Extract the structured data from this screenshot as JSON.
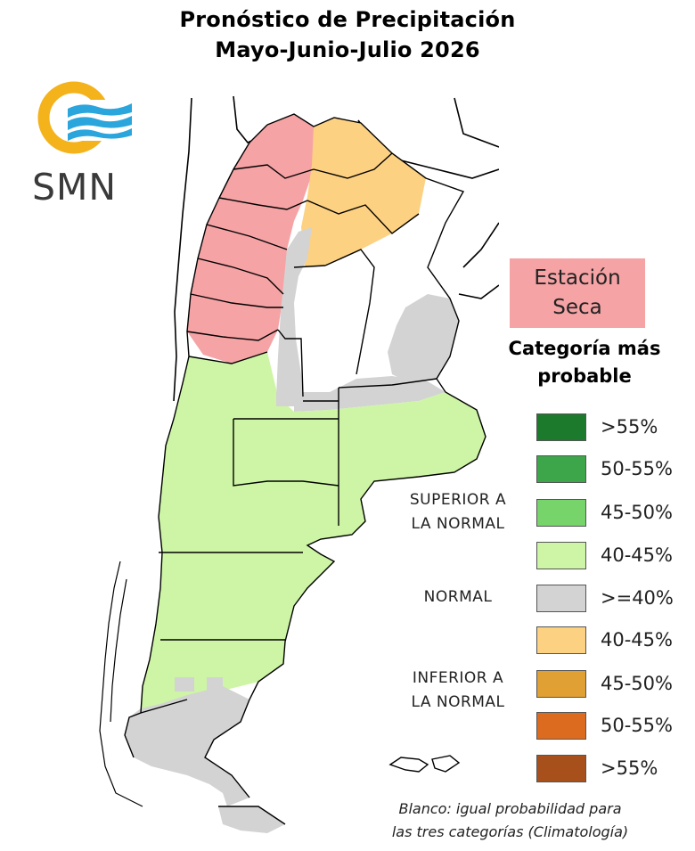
{
  "title_line1": "Pronóstico de Precipitación",
  "title_line2": "Mayo-Junio-Julio 2026",
  "logo": {
    "text": "SMN",
    "icon": "smn-sun-waves-logo",
    "colors": {
      "sun": "#f4b21b",
      "waves": "#2aa6dd",
      "text": "#3a3a3a"
    }
  },
  "dry_season": {
    "line1": "Estación",
    "line2": "Seca",
    "color": "#f5a3a5"
  },
  "legend": {
    "title_line1": "Categoría más",
    "title_line2": "probable",
    "groups": [
      {
        "label_line1": "SUPERIOR A",
        "label_line2": "LA NORMAL"
      },
      {
        "label_line1": "NORMAL",
        "label_line2": ""
      },
      {
        "label_line1": "INFERIOR A",
        "label_line2": "LA NORMAL"
      }
    ],
    "items": [
      {
        "label": ">55%",
        "color": "#1c7a2c"
      },
      {
        "label": "50-55%",
        "color": "#3da64a"
      },
      {
        "label": "45-50%",
        "color": "#77d46a"
      },
      {
        "label": "40-45%",
        "color": "#cdf5a5"
      },
      {
        "label": ">=40%",
        "color": "#d3d3d3"
      },
      {
        "label": "40-45%",
        "color": "#fdd182"
      },
      {
        "label": "45-50%",
        "color": "#e0a033"
      },
      {
        "label": "50-55%",
        "color": "#dc6b1f"
      },
      {
        "label": ">55%",
        "color": "#a8501b"
      }
    ]
  },
  "note_line1": "Blanco: igual probabilidad para",
  "note_line2": "las tres categorías (Climatología)",
  "map_colors": {
    "dry_season": "#f5a3a5",
    "below_40_45": "#fdd182",
    "normal": "#d3d3d3",
    "above_40_45": "#cdf5a5",
    "no_signal": "#ffffff"
  }
}
